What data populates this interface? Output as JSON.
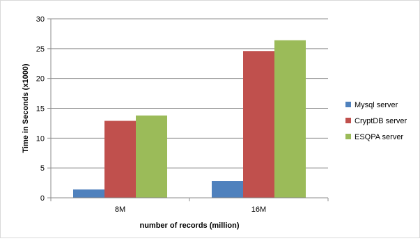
{
  "chart_data": {
    "type": "bar",
    "title": "",
    "xlabel": "number of records (million)",
    "ylabel": "Time in Seconds (x1000)",
    "categories": [
      "8M",
      "16M"
    ],
    "ylim": [
      0,
      30
    ],
    "yticks": [
      0,
      5,
      10,
      15,
      20,
      25,
      30
    ],
    "grid": true,
    "legend_position": "right",
    "series": [
      {
        "name": "Mysql server",
        "color": "#4f81bd",
        "values": [
          1.4,
          2.8
        ]
      },
      {
        "name": "CryptDB server",
        "color": "#c0504d",
        "values": [
          12.9,
          24.6
        ]
      },
      {
        "name": "ESQPA server",
        "color": "#9bbb59",
        "values": [
          13.8,
          26.4
        ]
      }
    ]
  }
}
